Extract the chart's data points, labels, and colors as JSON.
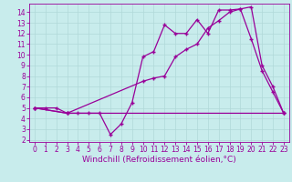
{
  "series1_x": [
    0,
    1,
    2,
    3,
    4,
    5,
    6,
    7,
    8,
    9,
    10,
    11,
    12,
    13,
    14,
    15,
    16,
    17,
    18,
    19,
    20,
    21,
    22,
    23
  ],
  "series1_y": [
    5,
    5,
    5,
    4.5,
    4.5,
    4.5,
    4.5,
    2.5,
    3.5,
    5.5,
    9.8,
    10.3,
    12.8,
    12.0,
    12.0,
    13.3,
    12.0,
    14.2,
    14.2,
    14.3,
    11.5,
    8.5,
    6.5,
    4.5
  ],
  "series2_x": [
    0,
    3,
    10,
    11,
    12,
    13,
    14,
    15,
    16,
    17,
    18,
    19,
    20,
    21,
    22,
    23
  ],
  "series2_y": [
    5,
    4.5,
    7.5,
    7.8,
    8.0,
    9.8,
    10.5,
    11.0,
    12.5,
    13.2,
    14.0,
    14.3,
    14.5,
    9.0,
    7.0,
    4.5
  ],
  "series3_x": [
    0,
    3,
    23
  ],
  "series3_y": [
    5,
    4.5,
    4.5
  ],
  "line_color": "#990099",
  "marker": "+",
  "bg_color": "#c8ecec",
  "grid_color": "#b0d8d8",
  "xlabel": "Windchill (Refroidissement éolien,°C)",
  "xlim": [
    -0.5,
    23.5
  ],
  "ylim": [
    1.8,
    14.8
  ],
  "xticks": [
    0,
    1,
    2,
    3,
    4,
    5,
    6,
    7,
    8,
    9,
    10,
    11,
    12,
    13,
    14,
    15,
    16,
    17,
    18,
    19,
    20,
    21,
    22,
    23
  ],
  "yticks": [
    2,
    3,
    4,
    5,
    6,
    7,
    8,
    9,
    10,
    11,
    12,
    13,
    14
  ],
  "tick_fontsize": 5.5,
  "xlabel_fontsize": 6.5
}
